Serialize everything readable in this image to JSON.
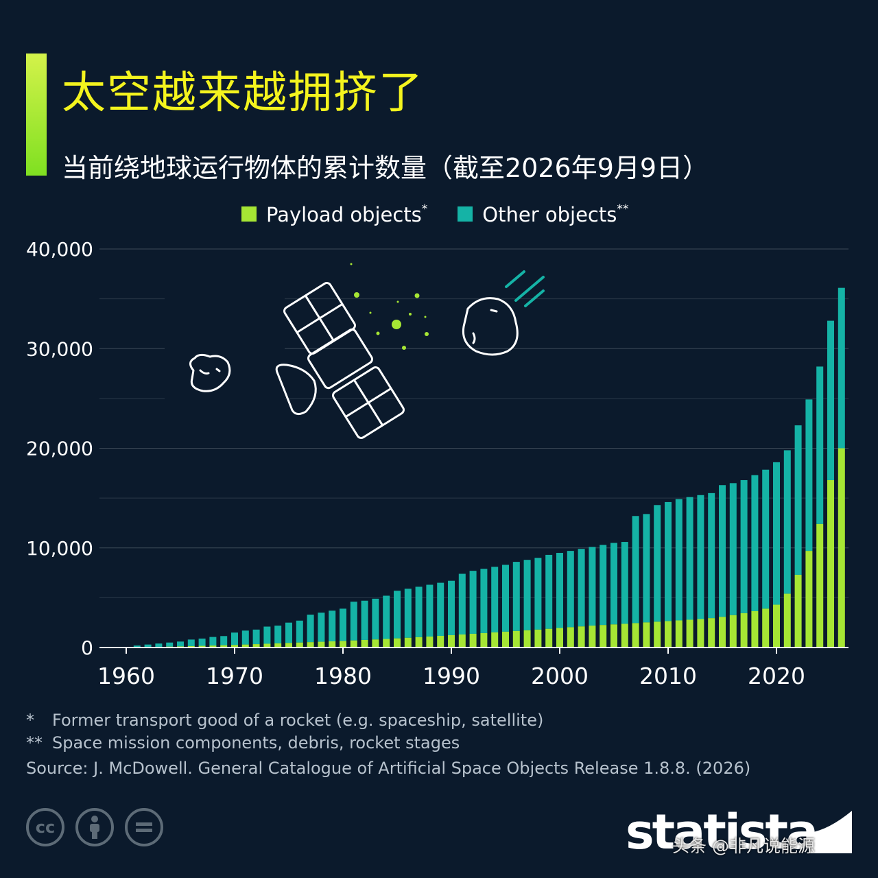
{
  "header": {
    "title": "太空越来越拥挤了",
    "subtitle": "当前绕地球运行物体的累计数量（截至2026年9月9日）"
  },
  "legend": {
    "payload_label": "Payload objects",
    "payload_mark": "*",
    "other_label": "Other objects",
    "other_mark": "**"
  },
  "colors": {
    "background": "#0b1a2c",
    "payload": "#a6e634",
    "other": "#15b3a6",
    "title": "#f4f41e",
    "accent": "#b4ea33"
  },
  "footnotes": {
    "note1_marker": "*",
    "note1_text": "Former transport good of a rocket (e.g. spaceship, satellite)",
    "note2_marker": "**",
    "note2_text": "Space mission components, debris, rocket stages",
    "source": "Source: J. McDowell. General Catalogue of Artificial Space Objects Release 1.8.8. (2026)"
  },
  "license_icons": [
    "cc-icon",
    "attribution-icon",
    "no-derivatives-icon"
  ],
  "brand": {
    "logo_text": "statista"
  },
  "watermark": {
    "text": "头条 @非凡说能源"
  },
  "chart_data": {
    "type": "bar",
    "stacked": true,
    "title": "当前绕地球运行物体的累计数量（截至2026年9月9日）",
    "xlabel": "",
    "ylabel": "",
    "ylim": [
      0,
      40000
    ],
    "yticks": [
      0,
      10000,
      20000,
      30000,
      40000
    ],
    "ytick_labels": [
      "0",
      "10,000",
      "20,000",
      "30,000",
      "40,000"
    ],
    "xticks": [
      1960,
      1970,
      1980,
      1990,
      2000,
      2010,
      2020
    ],
    "grid": true,
    "legend_position": "top-center",
    "categories": [
      1960,
      1961,
      1962,
      1963,
      1964,
      1965,
      1966,
      1967,
      1968,
      1969,
      1970,
      1971,
      1972,
      1973,
      1974,
      1975,
      1976,
      1977,
      1978,
      1979,
      1980,
      1981,
      1982,
      1983,
      1984,
      1985,
      1986,
      1987,
      1988,
      1989,
      1990,
      1991,
      1992,
      1993,
      1994,
      1995,
      1996,
      1997,
      1998,
      1999,
      2000,
      2001,
      2002,
      2003,
      2004,
      2005,
      2006,
      2007,
      2008,
      2009,
      2010,
      2011,
      2012,
      2013,
      2014,
      2015,
      2016,
      2017,
      2018,
      2019,
      2020,
      2021,
      2022,
      2023,
      2024,
      2025,
      2026
    ],
    "series": [
      {
        "name": "Payload objects",
        "values": [
          10,
          30,
          50,
          70,
          90,
          110,
          140,
          170,
          200,
          230,
          260,
          300,
          340,
          380,
          420,
          460,
          500,
          540,
          580,
          620,
          660,
          710,
          760,
          810,
          860,
          920,
          980,
          1040,
          1100,
          1170,
          1240,
          1310,
          1380,
          1450,
          1520,
          1590,
          1660,
          1730,
          1800,
          1880,
          1960,
          2040,
          2120,
          2200,
          2260,
          2320,
          2380,
          2450,
          2520,
          2590,
          2650,
          2720,
          2790,
          2860,
          2950,
          3080,
          3250,
          3450,
          3650,
          3900,
          4300,
          5400,
          7300,
          9700,
          12400,
          16800,
          20000
        ]
      },
      {
        "name": "Other objects",
        "values": [
          40,
          170,
          250,
          330,
          410,
          490,
          660,
          730,
          860,
          920,
          1240,
          1400,
          1460,
          1720,
          1780,
          2040,
          2200,
          2760,
          2920,
          3080,
          3240,
          3890,
          3940,
          4090,
          4340,
          4780,
          4920,
          5060,
          5200,
          5330,
          5460,
          6090,
          6320,
          6450,
          6580,
          6710,
          6940,
          7070,
          7200,
          7420,
          7540,
          7660,
          7780,
          7900,
          8040,
          8180,
          8220,
          10750,
          10880,
          11710,
          11950,
          12180,
          12310,
          12440,
          12550,
          13220,
          13250,
          13350,
          13650,
          13950,
          14300,
          14400,
          15000,
          15200,
          15800,
          16000,
          16100
        ]
      }
    ]
  }
}
